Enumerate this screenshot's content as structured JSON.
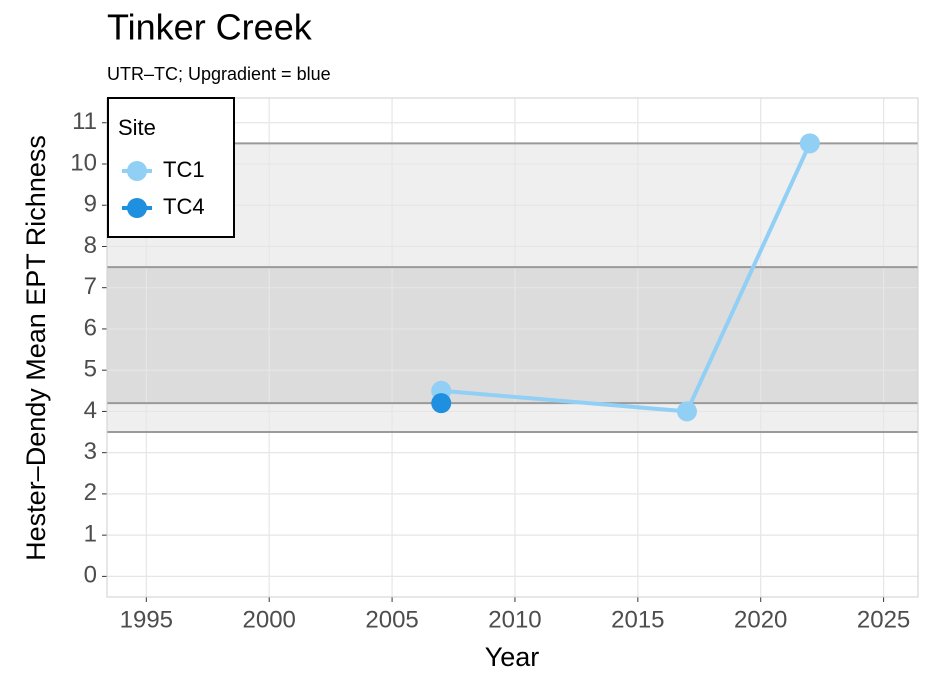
{
  "chart_data": {
    "type": "line",
    "title": "Tinker Creek",
    "subtitle": "UTR–TC; Upgradient = blue",
    "x_label": "Year",
    "y_label": "Hester–Dendy Mean EPT Richness",
    "legend_title": "Site",
    "legend_position": "top-left",
    "grid": true,
    "xlim": [
      1993.4,
      2026.4
    ],
    "xticks": [
      1995,
      2000,
      2005,
      2010,
      2015,
      2020,
      2025
    ],
    "ylim": [
      -0.5,
      11.6
    ],
    "yticks": [
      0,
      1,
      2,
      3,
      4,
      5,
      6,
      7,
      8,
      9,
      10,
      11
    ],
    "bands": [
      {
        "from": 3.5,
        "to": 10.5,
        "color": "#efefef"
      },
      {
        "from": 4.2,
        "to": 7.5,
        "color": "#dcdcdc"
      }
    ],
    "series": [
      {
        "name": "TC1",
        "color": "#92cff5",
        "x": [
          2007,
          2017,
          2022
        ],
        "values": [
          4.5,
          4.0,
          10.5
        ]
      },
      {
        "name": "TC4",
        "color": "#1f8fe0",
        "x": [
          2007
        ],
        "values": [
          4.2
        ]
      }
    ]
  }
}
